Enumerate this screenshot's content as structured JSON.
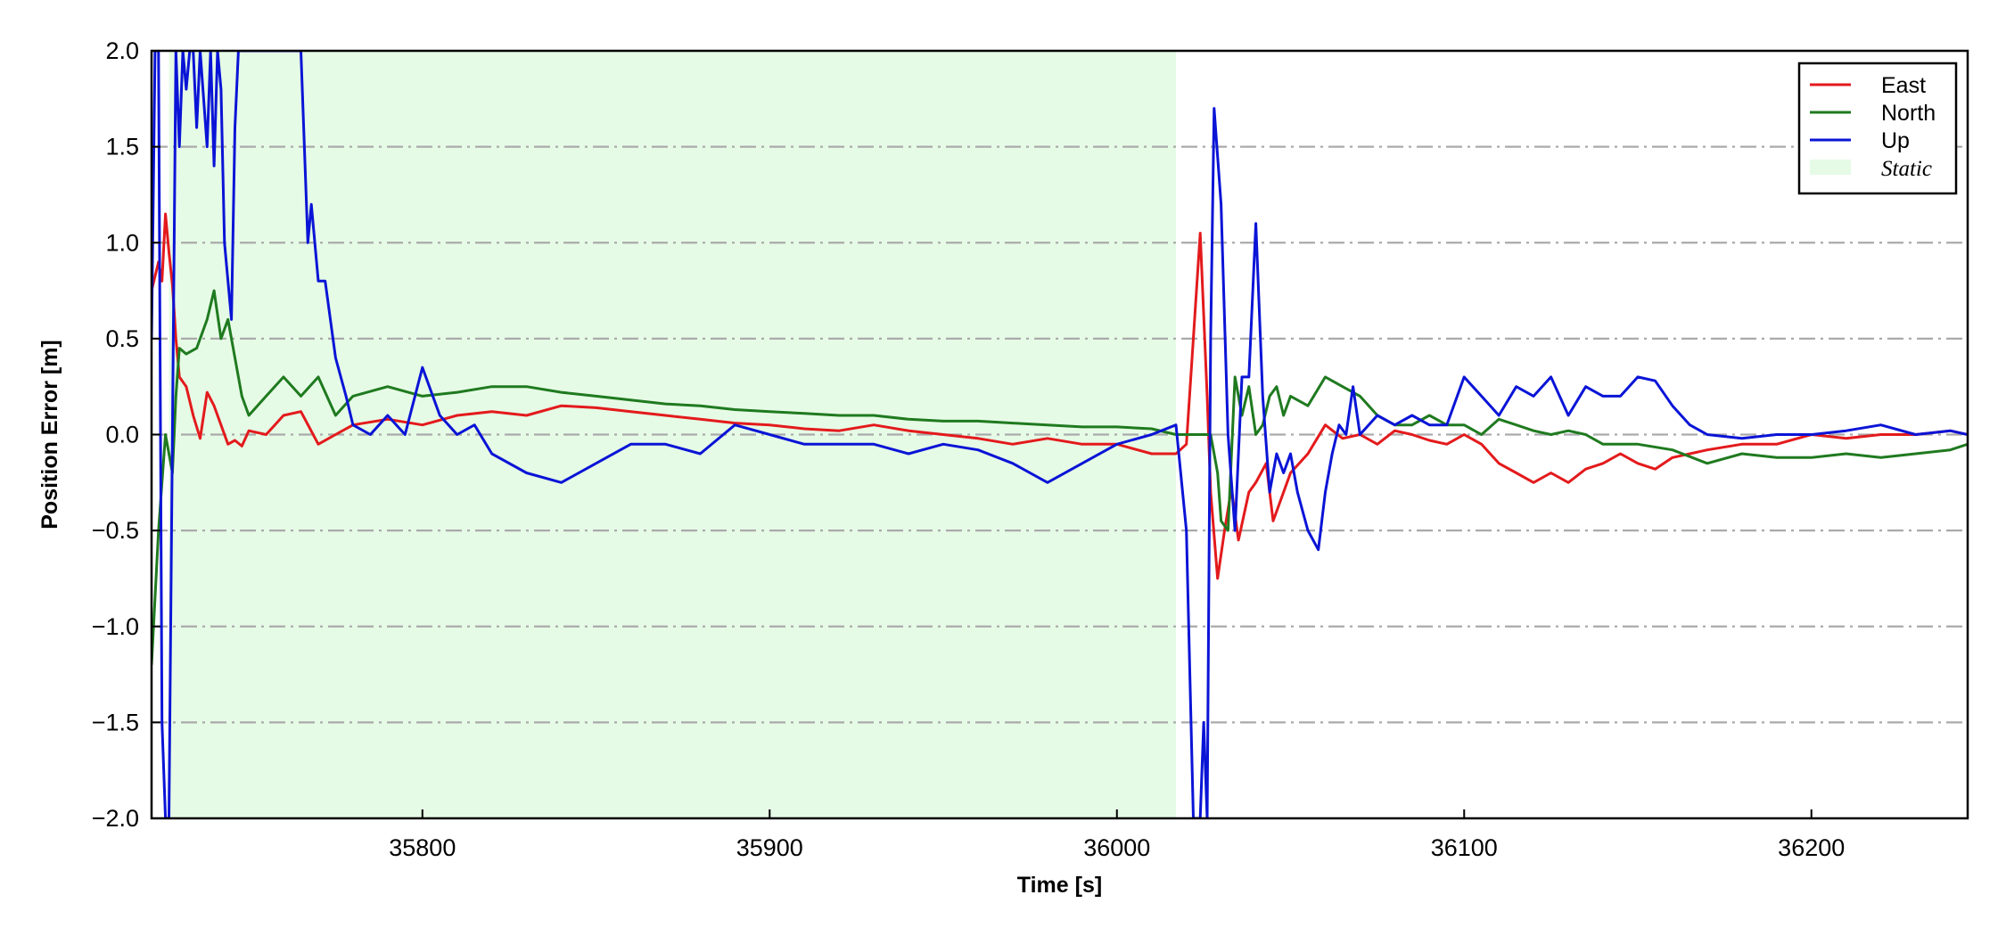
{
  "chart_data": {
    "type": "line",
    "xlabel": "Time [s]",
    "ylabel": "Position Error [m]",
    "xlim": [
      35722,
      36245
    ],
    "ylim": [
      -2.0,
      2.0
    ],
    "x_ticks": [
      35800,
      35900,
      36000,
      36100,
      36200
    ],
    "y_ticks": [
      -2.0,
      -1.5,
      -1.0,
      -0.5,
      0.0,
      0.5,
      1.0,
      1.5,
      2.0
    ],
    "y_tick_labels": [
      "−2.0",
      "−1.5",
      "−1.0",
      "−0.5",
      "0.0",
      "0.5",
      "1.0",
      "1.5",
      "2.0"
    ],
    "grid": "horizontal dash-dot",
    "legend_position": "top-right",
    "static_interval": {
      "label": "Static",
      "x_start": 35727,
      "x_end": 36017,
      "color": "#e6fbe6"
    },
    "series": [
      {
        "name": "East",
        "color": "#e31a1c",
        "x": [
          35722,
          35724,
          35725,
          35726,
          35727,
          35728,
          35729,
          35730,
          35732,
          35734,
          35736,
          35738,
          35740,
          35742,
          35744,
          35746,
          35748,
          35750,
          35755,
          35760,
          35765,
          35770,
          35775,
          35780,
          35790,
          35800,
          35810,
          35820,
          35830,
          35840,
          35850,
          35860,
          35870,
          35880,
          35890,
          35900,
          35910,
          35920,
          35930,
          35940,
          35950,
          35960,
          35970,
          35980,
          35990,
          36000,
          36010,
          36017,
          36020,
          36022,
          36024,
          36026,
          36027,
          36029,
          36031,
          36033,
          36035,
          36038,
          36040,
          36043,
          36045,
          36048,
          36050,
          36055,
          36060,
          36065,
          36070,
          36075,
          36080,
          36085,
          36090,
          36095,
          36100,
          36105,
          36110,
          36115,
          36120,
          36125,
          36130,
          36135,
          36140,
          36145,
          36150,
          36155,
          36160,
          36170,
          36180,
          36190,
          36200,
          36210,
          36220,
          36230,
          36240,
          36245
        ],
        "y": [
          0.75,
          0.9,
          0.8,
          1.15,
          0.95,
          0.78,
          0.5,
          0.3,
          0.25,
          0.1,
          -0.02,
          0.22,
          0.15,
          0.05,
          -0.05,
          -0.03,
          -0.06,
          0.02,
          0.0,
          0.1,
          0.12,
          -0.05,
          0.0,
          0.05,
          0.08,
          0.05,
          0.1,
          0.12,
          0.1,
          0.15,
          0.14,
          0.12,
          0.1,
          0.08,
          0.06,
          0.05,
          0.03,
          0.02,
          0.05,
          0.02,
          0.0,
          -0.02,
          -0.05,
          -0.02,
          -0.05,
          -0.05,
          -0.1,
          -0.1,
          -0.05,
          0.5,
          1.05,
          0.2,
          -0.3,
          -0.75,
          -0.5,
          -0.28,
          -0.55,
          -0.3,
          -0.25,
          -0.15,
          -0.45,
          -0.3,
          -0.2,
          -0.1,
          0.05,
          -0.02,
          0.0,
          -0.05,
          0.02,
          0.0,
          -0.03,
          -0.05,
          0.0,
          -0.05,
          -0.15,
          -0.2,
          -0.25,
          -0.2,
          -0.25,
          -0.18,
          -0.15,
          -0.1,
          -0.15,
          -0.18,
          -0.12,
          -0.08,
          -0.05,
          -0.05,
          0.0,
          -0.02,
          0.0,
          0.0,
          0.02,
          0.0
        ]
      },
      {
        "name": "North",
        "color": "#1f7a1f",
        "x": [
          35722,
          35724,
          35726,
          35728,
          35729,
          35730,
          35732,
          35735,
          35738,
          35740,
          35742,
          35744,
          35746,
          35748,
          35750,
          35755,
          35760,
          35765,
          35770,
          35775,
          35780,
          35790,
          35800,
          35810,
          35820,
          35830,
          35840,
          35850,
          35860,
          35870,
          35880,
          35890,
          35900,
          35910,
          35920,
          35930,
          35940,
          35950,
          35960,
          35970,
          35980,
          35990,
          36000,
          36010,
          36017,
          36020,
          36023,
          36025,
          36027,
          36029,
          36030,
          36032,
          36034,
          36036,
          36038,
          36040,
          36042,
          36044,
          36046,
          36048,
          36050,
          36055,
          36060,
          36065,
          36070,
          36075,
          36080,
          36085,
          36090,
          36095,
          36100,
          36105,
          36110,
          36115,
          36120,
          36125,
          36130,
          36135,
          36140,
          36150,
          36160,
          36170,
          36180,
          36190,
          36200,
          36210,
          36220,
          36230,
          36240,
          36245
        ],
        "y": [
          -1.2,
          -0.5,
          0.0,
          -0.2,
          0.2,
          0.45,
          0.42,
          0.45,
          0.6,
          0.75,
          0.5,
          0.6,
          0.4,
          0.2,
          0.1,
          0.2,
          0.3,
          0.2,
          0.3,
          0.1,
          0.2,
          0.25,
          0.2,
          0.22,
          0.25,
          0.25,
          0.22,
          0.2,
          0.18,
          0.16,
          0.15,
          0.13,
          0.12,
          0.11,
          0.1,
          0.1,
          0.08,
          0.07,
          0.07,
          0.06,
          0.05,
          0.04,
          0.04,
          0.03,
          0.0,
          0.0,
          0.0,
          0.0,
          0.0,
          -0.2,
          -0.45,
          -0.5,
          0.3,
          0.1,
          0.25,
          0.0,
          0.05,
          0.2,
          0.25,
          0.1,
          0.2,
          0.15,
          0.3,
          0.25,
          0.2,
          0.1,
          0.05,
          0.05,
          0.1,
          0.05,
          0.05,
          0.0,
          0.08,
          0.05,
          0.02,
          0.0,
          0.02,
          0.0,
          -0.05,
          -0.05,
          -0.08,
          -0.15,
          -0.1,
          -0.12,
          -0.12,
          -0.1,
          -0.12,
          -0.1,
          -0.08,
          -0.05
        ]
      },
      {
        "name": "Up",
        "color": "#0a14d6",
        "x": [
          35722,
          35723,
          35724,
          35725,
          35726,
          35727,
          35728,
          35729,
          35730,
          35731,
          35732,
          35733,
          35734,
          35735,
          35736,
          35738,
          35739,
          35740,
          35741,
          35742,
          35743,
          35744,
          35745,
          35746,
          35747,
          35748,
          35749,
          35750,
          35755,
          35760,
          35765,
          35767,
          35768,
          35770,
          35772,
          35775,
          35778,
          35780,
          35785,
          35790,
          35795,
          35800,
          35805,
          35810,
          35815,
          35820,
          35830,
          35840,
          35850,
          35860,
          35870,
          35880,
          35890,
          35900,
          35910,
          35920,
          35930,
          35940,
          35950,
          35960,
          35970,
          35980,
          35990,
          36000,
          36010,
          36017,
          36020,
          36022,
          36024,
          36025,
          36026,
          36027,
          36028,
          36030,
          36032,
          36034,
          36036,
          36038,
          36040,
          36042,
          36044,
          36046,
          36048,
          36050,
          36052,
          36055,
          36058,
          36060,
          36062,
          36064,
          36066,
          36068,
          36070,
          36075,
          36080,
          36085,
          36090,
          36095,
          36100,
          36105,
          36110,
          36115,
          36120,
          36125,
          36130,
          36135,
          36140,
          36145,
          36150,
          36155,
          36160,
          36165,
          36170,
          36180,
          36190,
          36200,
          36210,
          36220,
          36230,
          36240,
          36245
        ],
        "y": [
          0.5,
          2.0,
          2.0,
          -1.5,
          -2.0,
          -2.0,
          0.0,
          2.0,
          1.5,
          2.0,
          1.8,
          2.0,
          2.0,
          1.6,
          2.0,
          1.5,
          2.0,
          1.4,
          2.0,
          1.8,
          1.0,
          0.8,
          0.6,
          1.6,
          2.0,
          2.0,
          2.0,
          2.0,
          2.0,
          2.0,
          2.0,
          1.0,
          1.2,
          0.8,
          0.8,
          0.4,
          0.2,
          0.05,
          0.0,
          0.1,
          0.0,
          0.35,
          0.1,
          0.0,
          0.05,
          -0.1,
          -0.2,
          -0.25,
          -0.15,
          -0.05,
          -0.05,
          -0.1,
          0.05,
          0.0,
          -0.05,
          -0.05,
          -0.05,
          -0.1,
          -0.05,
          -0.08,
          -0.15,
          -0.25,
          -0.15,
          -0.05,
          0.0,
          0.05,
          -0.5,
          -2.0,
          -2.0,
          -1.5,
          -2.0,
          0.5,
          1.7,
          1.2,
          0.0,
          -0.5,
          0.3,
          0.3,
          1.1,
          0.2,
          -0.3,
          -0.1,
          -0.2,
          -0.1,
          -0.3,
          -0.5,
          -0.6,
          -0.3,
          -0.1,
          0.05,
          0.0,
          0.25,
          0.0,
          0.1,
          0.05,
          0.1,
          0.05,
          0.05,
          0.3,
          0.2,
          0.1,
          0.25,
          0.2,
          0.3,
          0.1,
          0.25,
          0.2,
          0.2,
          0.3,
          0.28,
          0.15,
          0.05,
          0.0,
          -0.02,
          0.0,
          0.0,
          0.02,
          0.05,
          0.0,
          0.02,
          0.0
        ]
      }
    ]
  }
}
